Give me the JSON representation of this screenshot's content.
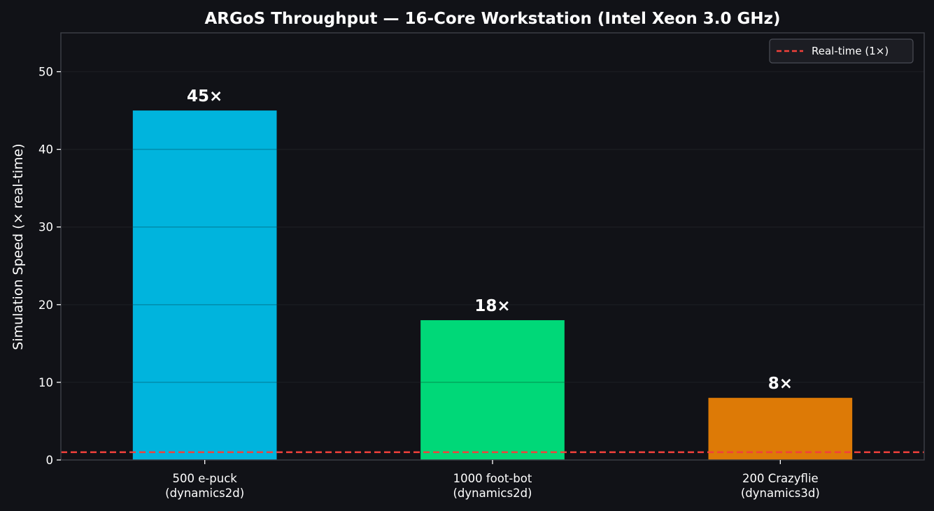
{
  "chart_data": {
    "type": "bar",
    "title": "ARGoS Throughput — 16-Core Workstation (Intel Xeon 3.0 GHz)",
    "xlabel": "",
    "ylabel": "Simulation Speed (× real-time)",
    "categories": [
      [
        "500 e-puck",
        "(dynamics2d)"
      ],
      [
        "1000 foot-bot",
        "(dynamics2d)"
      ],
      [
        "200 Crazyflie",
        "(dynamics3d)"
      ]
    ],
    "values": [
      45,
      18,
      8
    ],
    "data_labels": [
      "45×",
      "18×",
      "8×"
    ],
    "colors": [
      "#00b4dd",
      "#00d878",
      "#dd7a06"
    ],
    "ylim": [
      0,
      55
    ],
    "yticks": [
      0,
      10,
      20,
      30,
      40,
      50
    ],
    "grid": true,
    "reference_line": {
      "value": 1,
      "label": "Real-time (1×)",
      "color": "#f2413b",
      "style": "dashed"
    },
    "legend": {
      "placement": "top-right",
      "entries": [
        "Real-time (1×)"
      ]
    },
    "background": "#111217",
    "axes_color": "#3a3d45"
  }
}
